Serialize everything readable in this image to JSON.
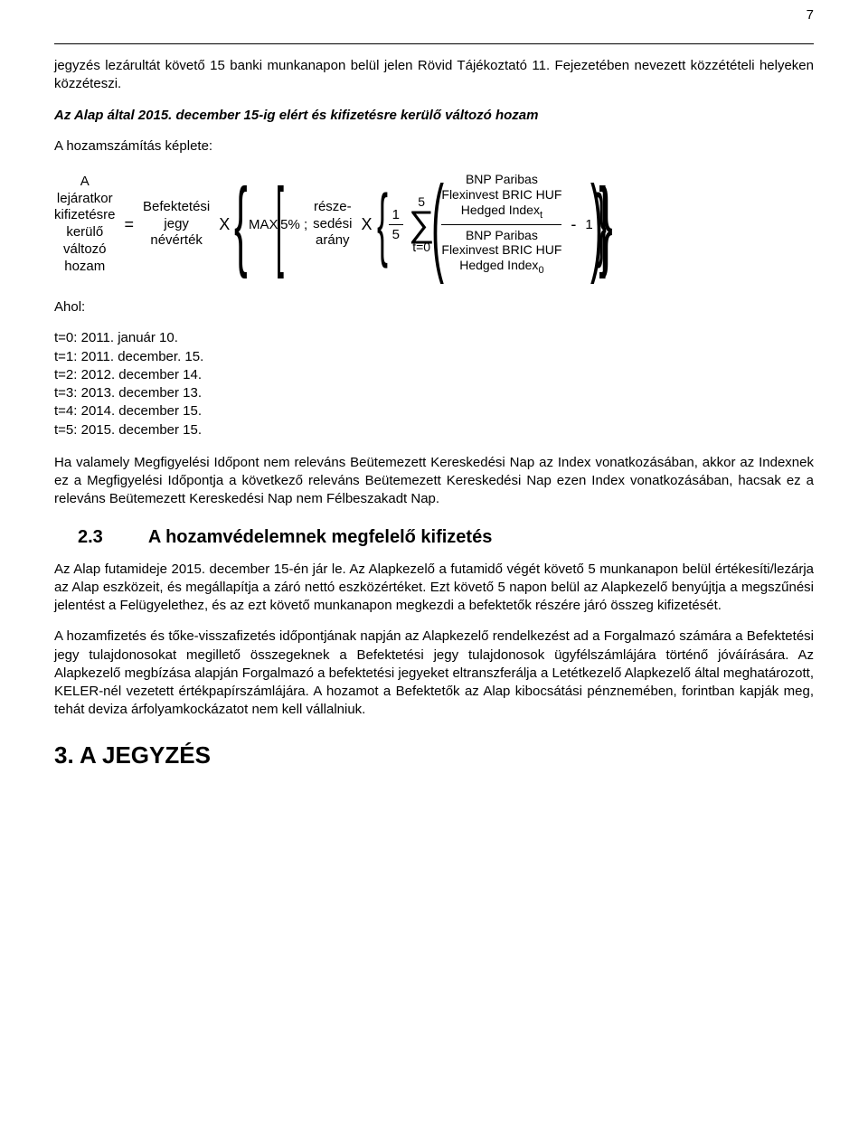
{
  "page_number": "7",
  "p1": "jegyzés lezárultát követő 15 banki munkanapon belül jelen Rövid Tájékoztató 11. Fejezetében nevezett közzétételi helyeken közzéteszi.",
  "p2": "Az Alap által 2015. december 15-ig elért és kifizetésre kerülő változó hozam",
  "p3": "A hozamszámítás képlete:",
  "formula": {
    "lhs": {
      "l1": "A",
      "l2": "lejáratkor",
      "l3": "kifizetésre",
      "l4": "kerülő",
      "l5": "változó",
      "l6": "hozam"
    },
    "eq": "=",
    "bef": {
      "l1": "Befektetési",
      "l2": "jegy",
      "l3": "névérték"
    },
    "x": "X",
    "max_label": "MAX",
    "five_pct": "5% ;",
    "resz": {
      "l1": "része-",
      "l2": "sedési",
      "l3": "arány"
    },
    "frac15": {
      "num": "1",
      "den": "5"
    },
    "sum_top": "5",
    "sum_bot": "t=0",
    "idx_num": {
      "l1": "BNP Paribas",
      "l2": "Flexinvest BRIC HUF",
      "l3_pre": "Hedged Index",
      "l3_sub": "t"
    },
    "idx_den": {
      "l1": "BNP Paribas",
      "l2": "Flexinvest BRIC HUF",
      "l3_pre": "Hedged Index",
      "l3_sub": "0"
    },
    "minus": "-",
    "one": "1"
  },
  "ahol": "Ahol:",
  "t_list": {
    "t0": "t=0: 2011. január 10.",
    "t1": "t=1: 2011. december. 15.",
    "t2": "t=2: 2012. december 14.",
    "t3": "t=3: 2013. december 13.",
    "t4": "t=4: 2014. december 15.",
    "t5": "t=5: 2015. december 15."
  },
  "p4": "Ha valamely Megfigyelési Időpont nem releváns Beütemezett Kereskedési Nap az Index vonatkozásában, akkor az Indexnek ez a Megfigyelési Időpontja a következő releváns Beütemezett Kereskedési Nap ezen Index vonatkozásában, hacsak ez a releváns Beütemezett Kereskedési Nap nem Félbeszakadt Nap.",
  "sec23_num": "2.3",
  "sec23_title": "A hozamvédelemnek megfelelő kifizetés",
  "p5": "Az Alap futamideje 2015. december 15-én jár le. Az Alapkezelő a futamidő végét követő 5 munkanapon belül értékesíti/lezárja az Alap eszközeit, és megállapítja a záró nettó eszközértéket. Ezt követő 5 napon belül az Alapkezelő benyújtja a megszűnési jelentést a Felügyelethez, és az ezt követő munkanapon megkezdi a befektetők részére járó összeg kifizetését.",
  "p6": "A hozamfizetés és tőke-visszafizetés időpontjának napján az Alapkezelő rendelkezést ad a Forgalmazó számára a Befektetési jegy tulajdonosokat megillető összegeknek a Befektetési jegy tulajdonosok ügyfélszámlájára történő jóváírására. Az Alapkezelő megbízása alapján Forgalmazó a befektetési jegyeket eltranszferálja a Letétkezelő Alapkezelő által meghatározott, KELER-nél vezetett értékpapírszámlájára. A hozamot a Befektetők az Alap kibocsátási pénznemében, forintban kapják meg, tehát deviza árfolyamkockázatot nem kell vállalniuk.",
  "sec3": "3. A JEGYZÉS"
}
